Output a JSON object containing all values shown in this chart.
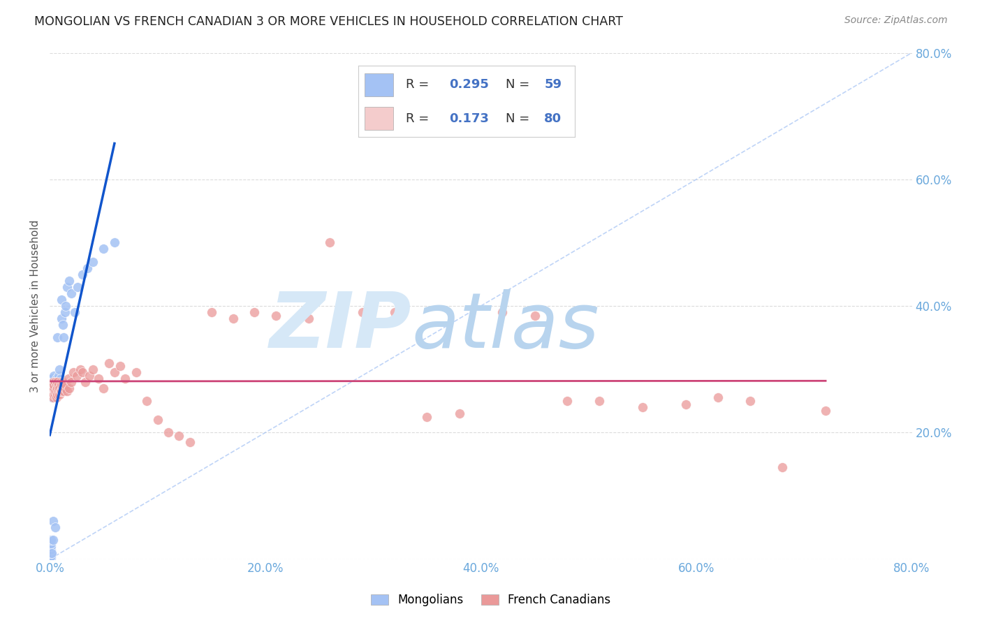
{
  "title": "MONGOLIAN VS FRENCH CANADIAN 3 OR MORE VEHICLES IN HOUSEHOLD CORRELATION CHART",
  "source": "Source: ZipAtlas.com",
  "ylabel": "3 or more Vehicles in Household",
  "xlim": [
    0.0,
    0.8
  ],
  "ylim": [
    0.0,
    0.8
  ],
  "xticks": [
    0.0,
    0.2,
    0.4,
    0.6,
    0.8
  ],
  "yticks": [
    0.0,
    0.2,
    0.4,
    0.6,
    0.8
  ],
  "mongolian_R": 0.295,
  "mongolian_N": 59,
  "french_R": 0.173,
  "french_N": 80,
  "blue_scatter_color": "#a4c2f4",
  "pink_scatter_color": "#ea9999",
  "blue_line_color": "#1155cc",
  "blue_diag_color": "#a4c2f4",
  "pink_line_color": "#cc4477",
  "axis_tick_color": "#6aa8dc",
  "title_color": "#222222",
  "background_color": "#ffffff",
  "grid_color": "#cccccc",
  "watermark_zip_color": "#cfe2f3",
  "watermark_atlas_color": "#a0c4e8",
  "legend_r_color": "#4472c4",
  "legend_n_color": "#4472c4",
  "legend_box_color": "#e8f0fe",
  "legend_pink_color": "#f4cccc",
  "mongolian_x": [
    0.001,
    0.001,
    0.001,
    0.001,
    0.001,
    0.001,
    0.001,
    0.001,
    0.001,
    0.001,
    0.002,
    0.002,
    0.002,
    0.002,
    0.002,
    0.002,
    0.002,
    0.002,
    0.003,
    0.003,
    0.003,
    0.003,
    0.003,
    0.003,
    0.004,
    0.004,
    0.004,
    0.004,
    0.005,
    0.005,
    0.005,
    0.005,
    0.006,
    0.006,
    0.006,
    0.007,
    0.007,
    0.008,
    0.008,
    0.009,
    0.009,
    0.01,
    0.01,
    0.011,
    0.011,
    0.012,
    0.013,
    0.014,
    0.015,
    0.016,
    0.018,
    0.02,
    0.023,
    0.026,
    0.03,
    0.035,
    0.04,
    0.05,
    0.06
  ],
  "mongolian_y": [
    0.002,
    0.005,
    0.01,
    0.015,
    0.02,
    0.025,
    0.03,
    0.26,
    0.265,
    0.27,
    0.255,
    0.26,
    0.265,
    0.27,
    0.275,
    0.28,
    0.285,
    0.01,
    0.265,
    0.27,
    0.275,
    0.28,
    0.03,
    0.06,
    0.27,
    0.275,
    0.28,
    0.29,
    0.265,
    0.27,
    0.28,
    0.05,
    0.27,
    0.275,
    0.285,
    0.27,
    0.35,
    0.27,
    0.29,
    0.27,
    0.3,
    0.27,
    0.285,
    0.38,
    0.41,
    0.37,
    0.35,
    0.39,
    0.4,
    0.43,
    0.44,
    0.42,
    0.39,
    0.43,
    0.45,
    0.46,
    0.47,
    0.49,
    0.5
  ],
  "french_x": [
    0.001,
    0.001,
    0.001,
    0.001,
    0.002,
    0.002,
    0.002,
    0.002,
    0.003,
    0.003,
    0.003,
    0.003,
    0.004,
    0.004,
    0.004,
    0.005,
    0.005,
    0.005,
    0.006,
    0.006,
    0.006,
    0.007,
    0.007,
    0.007,
    0.008,
    0.008,
    0.009,
    0.009,
    0.01,
    0.01,
    0.011,
    0.011,
    0.012,
    0.012,
    0.013,
    0.014,
    0.015,
    0.016,
    0.017,
    0.018,
    0.02,
    0.022,
    0.025,
    0.028,
    0.03,
    0.033,
    0.037,
    0.04,
    0.045,
    0.05,
    0.055,
    0.06,
    0.065,
    0.07,
    0.08,
    0.09,
    0.1,
    0.11,
    0.12,
    0.13,
    0.15,
    0.17,
    0.19,
    0.21,
    0.24,
    0.26,
    0.29,
    0.32,
    0.35,
    0.38,
    0.42,
    0.45,
    0.48,
    0.51,
    0.55,
    0.59,
    0.62,
    0.65,
    0.68,
    0.72
  ],
  "french_y": [
    0.26,
    0.265,
    0.27,
    0.275,
    0.26,
    0.265,
    0.27,
    0.275,
    0.255,
    0.265,
    0.27,
    0.28,
    0.26,
    0.27,
    0.275,
    0.26,
    0.265,
    0.28,
    0.255,
    0.265,
    0.275,
    0.26,
    0.27,
    0.28,
    0.265,
    0.275,
    0.26,
    0.27,
    0.265,
    0.28,
    0.265,
    0.275,
    0.27,
    0.28,
    0.265,
    0.27,
    0.275,
    0.265,
    0.285,
    0.27,
    0.28,
    0.295,
    0.29,
    0.3,
    0.295,
    0.28,
    0.29,
    0.3,
    0.285,
    0.27,
    0.31,
    0.295,
    0.305,
    0.285,
    0.295,
    0.25,
    0.22,
    0.2,
    0.195,
    0.185,
    0.39,
    0.38,
    0.39,
    0.385,
    0.38,
    0.5,
    0.39,
    0.39,
    0.225,
    0.23,
    0.39,
    0.385,
    0.25,
    0.25,
    0.24,
    0.245,
    0.255,
    0.25,
    0.145,
    0.235
  ]
}
